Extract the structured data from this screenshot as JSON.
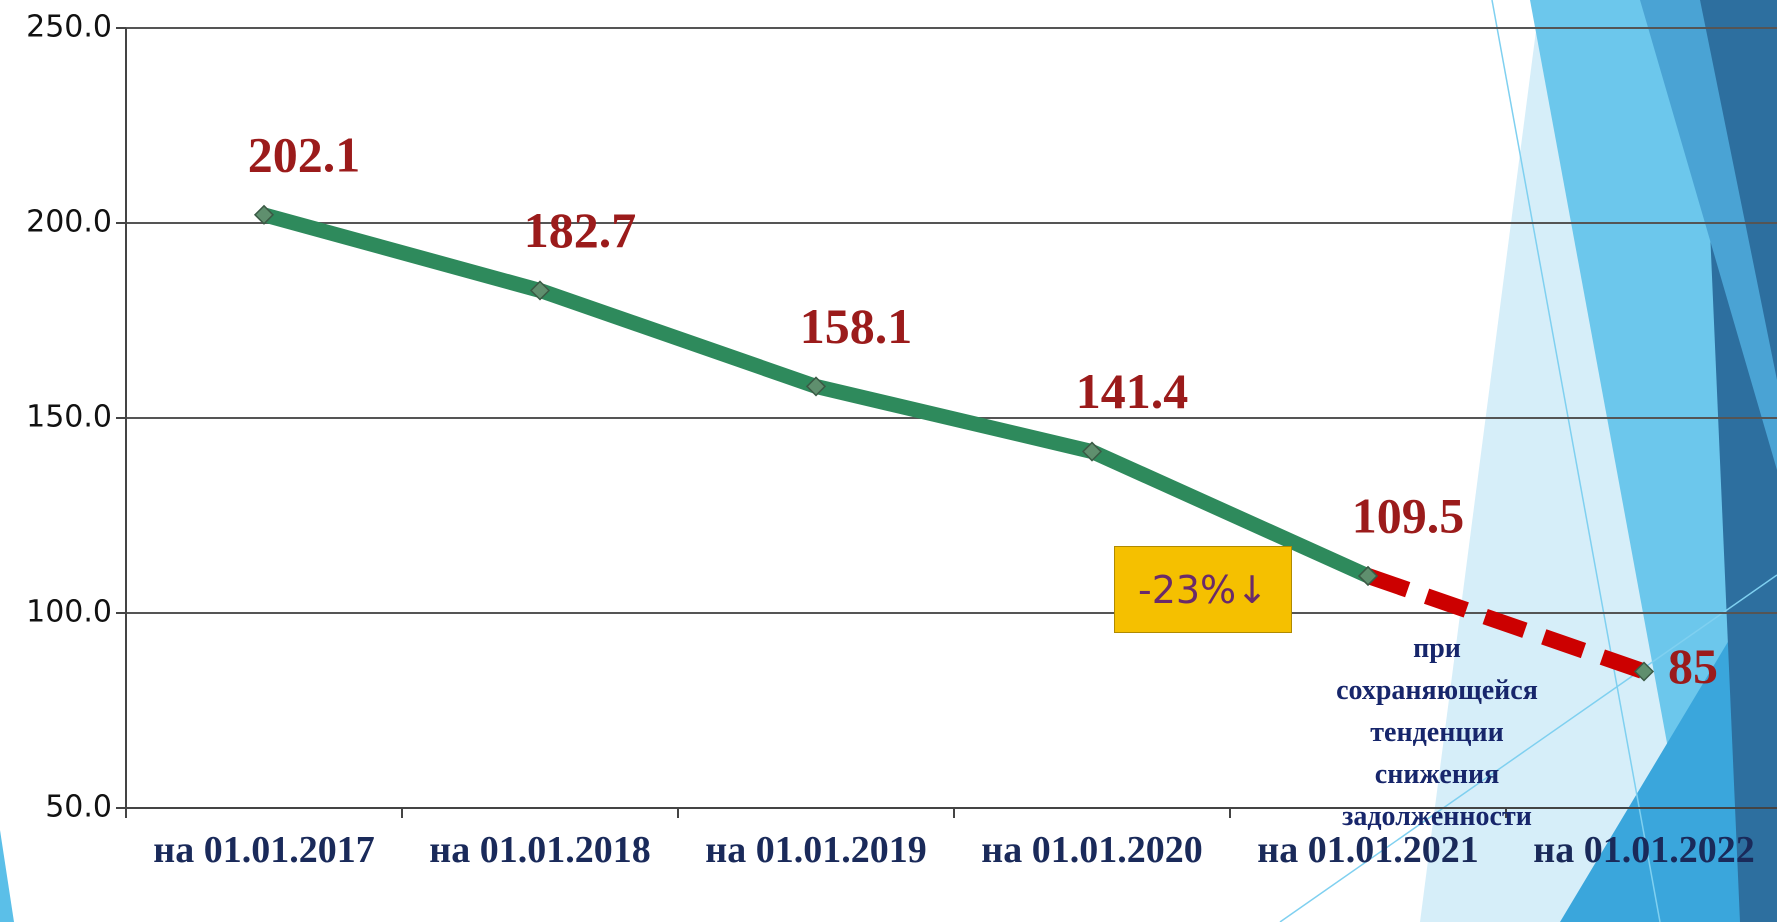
{
  "chart_data": {
    "type": "line",
    "categories": [
      "на 01.01.2017",
      "на 01.01.2018",
      "на 01.01.2019",
      "на 01.01.2020",
      "на 01.01.2021",
      "на 01.01.2022"
    ],
    "series": [
      {
        "color": "#2e8a5c",
        "dashed": false,
        "values": [
          202.1,
          182.7,
          158.1,
          141.4,
          109.5,
          null
        ]
      },
      {
        "color": "#cc0000",
        "dashed": true,
        "values": [
          null,
          null,
          null,
          null,
          109.5,
          85
        ]
      }
    ],
    "ylim": [
      50,
      250
    ],
    "yticks": [
      {
        "value": 50,
        "label": "50.0"
      },
      {
        "value": 100,
        "label": "100.0"
      },
      {
        "value": 150,
        "label": "150.0"
      },
      {
        "value": 200,
        "label": "200.0"
      },
      {
        "value": 250,
        "label": "250.0"
      }
    ],
    "grid": true,
    "annotations": [
      "-23%↓",
      "при сохраняющейся тенденции снижения задолженности"
    ]
  }
}
